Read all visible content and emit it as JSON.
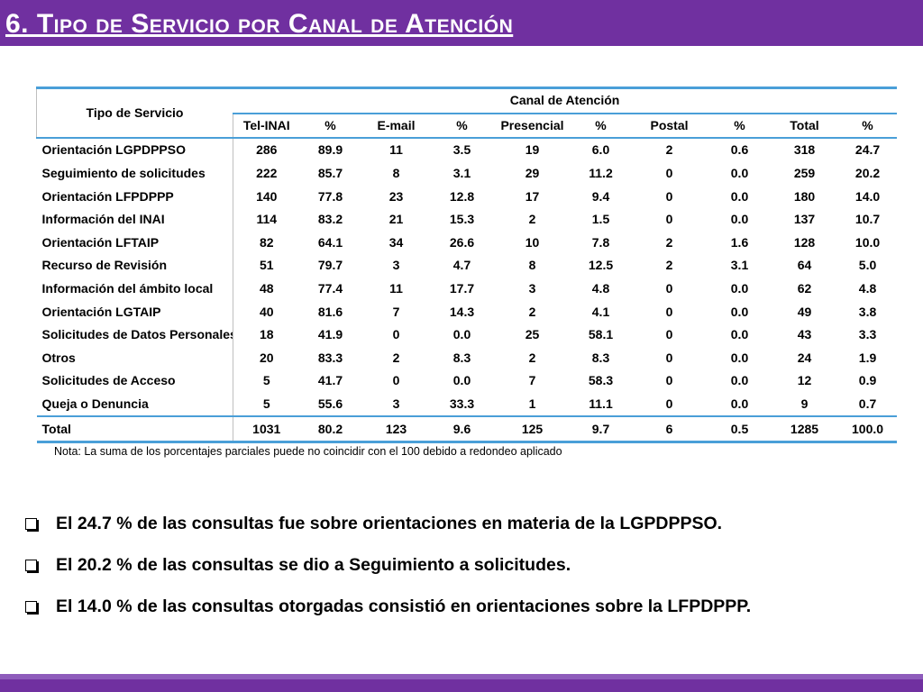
{
  "title": "6. Tipo de Servicio por Canal de Atención",
  "table": {
    "header_tipo": "Tipo de Servicio",
    "header_canal": "Canal de Atención",
    "columns": [
      "Tel-INAI",
      "%",
      "E-mail",
      "%",
      "Presencial",
      "%",
      "Postal",
      "%",
      "Total",
      "%"
    ],
    "rows": [
      {
        "name": "Orientación LGPDPPSO",
        "values": [
          "286",
          "89.9",
          "11",
          "3.5",
          "19",
          "6.0",
          "2",
          "0.6",
          "318",
          "24.7"
        ]
      },
      {
        "name": "Seguimiento de solicitudes",
        "values": [
          "222",
          "85.7",
          "8",
          "3.1",
          "29",
          "11.2",
          "0",
          "0.0",
          "259",
          "20.2"
        ]
      },
      {
        "name": "Orientación LFPDPPP",
        "values": [
          "140",
          "77.8",
          "23",
          "12.8",
          "17",
          "9.4",
          "0",
          "0.0",
          "180",
          "14.0"
        ]
      },
      {
        "name": "Información del INAI",
        "values": [
          "114",
          "83.2",
          "21",
          "15.3",
          "2",
          "1.5",
          "0",
          "0.0",
          "137",
          "10.7"
        ]
      },
      {
        "name": "Orientación LFTAIP",
        "values": [
          "82",
          "64.1",
          "34",
          "26.6",
          "10",
          "7.8",
          "2",
          "1.6",
          "128",
          "10.0"
        ]
      },
      {
        "name": "Recurso de Revisión",
        "values": [
          "51",
          "79.7",
          "3",
          "4.7",
          "8",
          "12.5",
          "2",
          "3.1",
          "64",
          "5.0"
        ]
      },
      {
        "name": "Información del ámbito local",
        "values": [
          "48",
          "77.4",
          "11",
          "17.7",
          "3",
          "4.8",
          "0",
          "0.0",
          "62",
          "4.8"
        ]
      },
      {
        "name": "Orientación LGTAIP",
        "values": [
          "40",
          "81.6",
          "7",
          "14.3",
          "2",
          "4.1",
          "0",
          "0.0",
          "49",
          "3.8"
        ]
      },
      {
        "name": "Solicitudes de Datos Personales",
        "values": [
          "18",
          "41.9",
          "0",
          "0.0",
          "25",
          "58.1",
          "0",
          "0.0",
          "43",
          "3.3"
        ]
      },
      {
        "name": "Otros",
        "values": [
          "20",
          "83.3",
          "2",
          "8.3",
          "2",
          "8.3",
          "0",
          "0.0",
          "24",
          "1.9"
        ]
      },
      {
        "name": "Solicitudes de Acceso",
        "values": [
          "5",
          "41.7",
          "0",
          "0.0",
          "7",
          "58.3",
          "0",
          "0.0",
          "12",
          "0.9"
        ]
      },
      {
        "name": "Queja o Denuncia",
        "values": [
          "5",
          "55.6",
          "3",
          "33.3",
          "1",
          "11.1",
          "0",
          "0.0",
          "9",
          "0.7"
        ]
      }
    ],
    "total": {
      "name": "Total",
      "values": [
        "1031",
        "80.2",
        "123",
        "9.6",
        "125",
        "9.7",
        "6",
        "0.5",
        "1285",
        "100.0"
      ]
    }
  },
  "note": "Nota: La suma de los porcentajes parciales puede no coincidir con el 100 debido a redondeo aplicado",
  "bullets": [
    "El 24.7 % de las consultas fue sobre orientaciones en materia de la LGPDPPSO.",
    "El 20.2 % de las consultas se dio a Seguimiento a solicitudes.",
    "El 14.0 % de las consultas otorgadas consistió en orientaciones sobre la LFPDPPP."
  ],
  "colors": {
    "accent": "#7030a0",
    "table_rule": "#4a9fd8"
  }
}
